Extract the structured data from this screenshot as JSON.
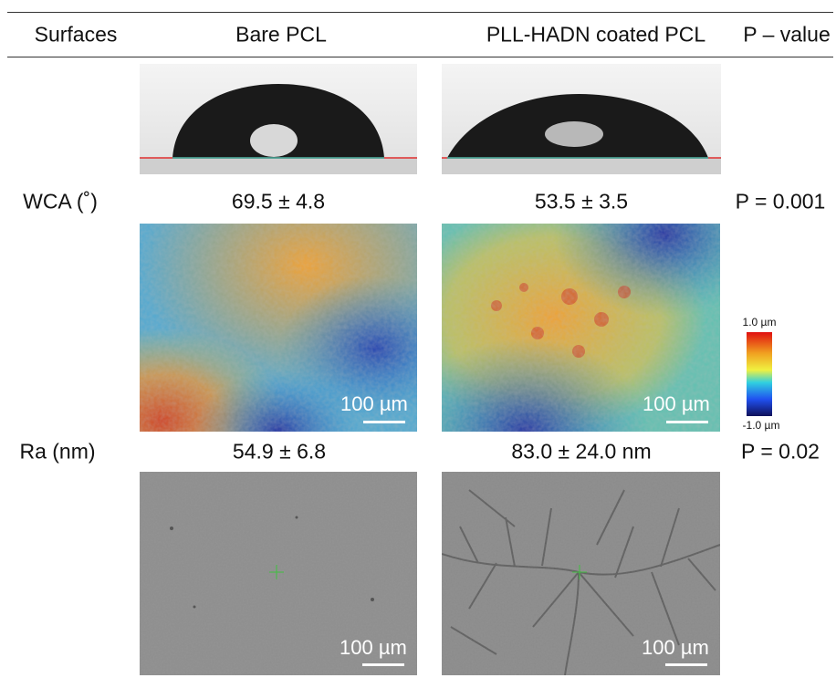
{
  "header": {
    "columns": [
      "Surfaces",
      "Bare PCL",
      "PLL-HADN coated PCL",
      "P – value"
    ]
  },
  "rows": [
    {
      "label": "WCA (˚)",
      "bare": "69.5 ± 4.8",
      "coated": "53.5 ± 3.5",
      "p": "P = 0.001"
    },
    {
      "label": "Ra (nm)",
      "bare": "54.9 ± 6.8",
      "coated": "83.0 ± 24.0 nm",
      "p": "P = 0.02"
    }
  ],
  "scale_bars": [
    "100 µm",
    "100 µm",
    "100 µm",
    "100 µm"
  ],
  "colorbar": {
    "max": "1.0 µm",
    "min": "-1.0 µm"
  }
}
